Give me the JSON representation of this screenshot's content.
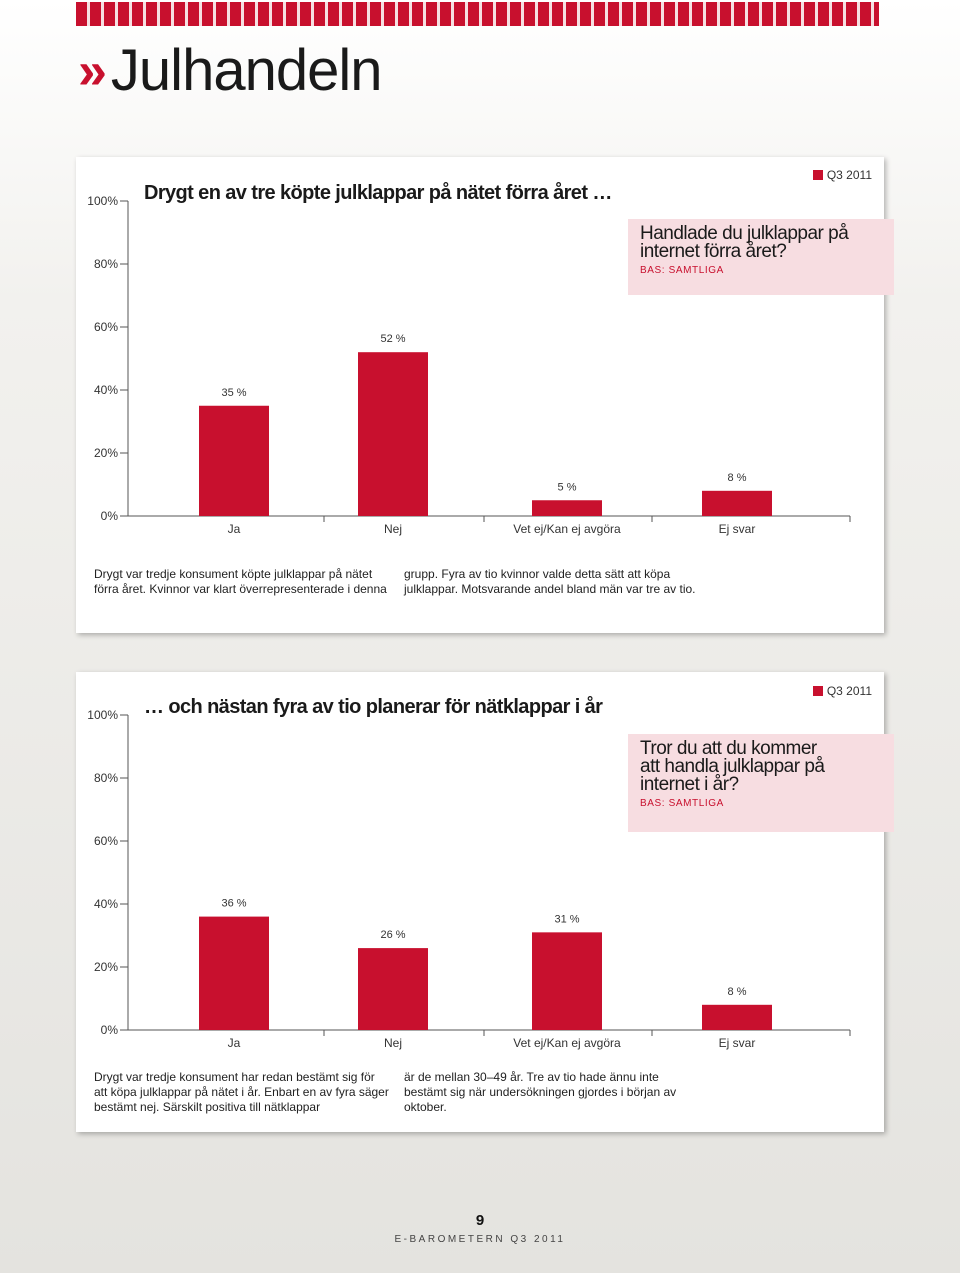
{
  "page": {
    "title": "Julhandeln",
    "page_number": "9",
    "footer": "E-BAROMETERN Q3 2011",
    "colors": {
      "accent": "#c8102e",
      "question_bg": "#f7dde1"
    }
  },
  "chart_data": [
    {
      "type": "bar",
      "title": "Drygt en av tre köpte julklappar på nätet förra året …",
      "question": "Handlade du julklappar på internet förra året?",
      "base": "BAS: SAMTLIGA",
      "legend": "Q3 2011",
      "categories": [
        "Ja",
        "Nej",
        "Vet ej/Kan ej avgöra",
        "Ej svar"
      ],
      "values": [
        35,
        52,
        5,
        8
      ],
      "value_labels": [
        "35 %",
        "52 %",
        "5 %",
        "8 %"
      ],
      "y_ticks": [
        "0%",
        "20%",
        "40%",
        "60%",
        "80%",
        "100%"
      ],
      "ylim": [
        0,
        100
      ],
      "caption_left": "Drygt var tredje konsument köpte julklappar på nätet förra året. Kvinnor var klart överrepresenterade i denna",
      "caption_right": "grupp. Fyra av tio kvinnor valde detta sätt att köpa julklappar. Motsvarande andel bland män var tre av tio."
    },
    {
      "type": "bar",
      "title": "… och nästan fyra av tio planerar för nätklappar i år",
      "question": "Tror du att du kommer att handla julklappar på internet i år?",
      "base": "BAS: SAMTLIGA",
      "legend": "Q3 2011",
      "categories": [
        "Ja",
        "Nej",
        "Vet ej/Kan ej avgöra",
        "Ej svar"
      ],
      "values": [
        36,
        26,
        31,
        8
      ],
      "value_labels": [
        "36 %",
        "26 %",
        "31 %",
        "8 %"
      ],
      "y_ticks": [
        "0%",
        "20%",
        "40%",
        "60%",
        "80%",
        "100%"
      ],
      "ylim": [
        0,
        100
      ],
      "caption_left": "Drygt var tredje konsument har redan bestämt sig för att köpa julklappar på nätet i år. Enbart en av fyra säger bestämt nej. Särskilt positiva till nätklappar",
      "caption_right": "är de mellan 30–49 år. Tre av tio hade ännu inte bestämt sig när undersökningen gjordes i början av oktober."
    }
  ]
}
